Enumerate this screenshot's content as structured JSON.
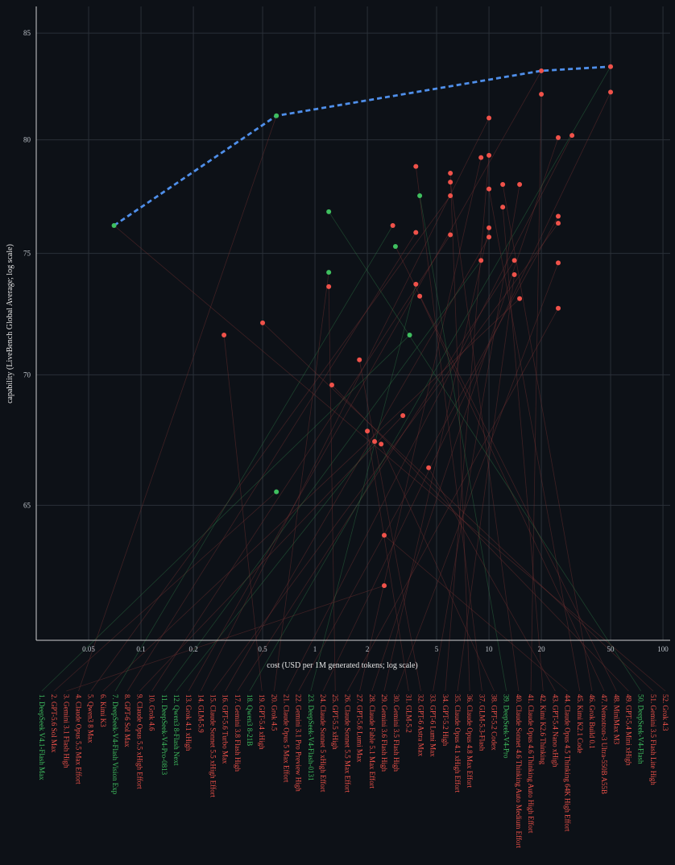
{
  "chart_data": {
    "type": "scatter",
    "xlabel": "cost (USD per 1M generated tokens; log scale)",
    "ylabel": "capability (LiveBench Global Average; log scale)",
    "x_scale": "log",
    "y_scale": "log",
    "xlim": [
      0.025,
      110
    ],
    "ylim": [
      60.2,
      86.3
    ],
    "x_ticks": [
      0.05,
      0.1,
      0.2,
      0.5,
      1,
      2,
      5,
      10,
      20,
      50,
      100
    ],
    "x_tick_labels": [
      "0.05",
      "0.1",
      "0.2",
      "0.5",
      "1",
      "2",
      "5",
      "10",
      "20",
      "50",
      "100"
    ],
    "y_ticks": [
      65,
      70,
      75,
      80,
      85
    ],
    "y_tick_labels": [
      "65",
      "70",
      "75",
      "80",
      "85"
    ],
    "grid": true,
    "colors": {
      "open": "#3fbf5f",
      "closed": "#f0524a",
      "frontier": "#4f8fea",
      "background": "#0d1117",
      "grid": "#2a3038",
      "axis": "#d0d0d0"
    },
    "frontier": [
      {
        "x": 0.07,
        "y": 76.2
      },
      {
        "x": 0.6,
        "y": 81.1
      },
      {
        "x": 20,
        "y": 83.2
      },
      {
        "x": 50,
        "y": 83.4
      }
    ],
    "points": [
      {
        "x": 0.07,
        "y": 76.2,
        "open": true
      },
      {
        "x": 0.3,
        "y": 71.6,
        "open": false
      },
      {
        "x": 0.5,
        "y": 72.1,
        "open": false
      },
      {
        "x": 0.6,
        "y": 81.1,
        "open": true
      },
      {
        "x": 0.6,
        "y": 65.5,
        "open": true
      },
      {
        "x": 1.2,
        "y": 76.8,
        "open": true
      },
      {
        "x": 1.2,
        "y": 74.2,
        "open": true
      },
      {
        "x": 1.2,
        "y": 73.6,
        "open": false
      },
      {
        "x": 1.25,
        "y": 69.6,
        "open": false
      },
      {
        "x": 1.8,
        "y": 70.6,
        "open": false
      },
      {
        "x": 2.0,
        "y": 67.8,
        "open": false
      },
      {
        "x": 2.2,
        "y": 67.4,
        "open": false
      },
      {
        "x": 2.4,
        "y": 67.3,
        "open": false
      },
      {
        "x": 2.5,
        "y": 63.9,
        "open": false
      },
      {
        "x": 2.5,
        "y": 62.1,
        "open": false
      },
      {
        "x": 2.8,
        "y": 76.2,
        "open": false
      },
      {
        "x": 2.9,
        "y": 75.3,
        "open": true
      },
      {
        "x": 3.2,
        "y": 68.4,
        "open": false
      },
      {
        "x": 3.5,
        "y": 71.6,
        "open": true
      },
      {
        "x": 3.8,
        "y": 78.8,
        "open": false
      },
      {
        "x": 3.8,
        "y": 75.9,
        "open": false
      },
      {
        "x": 3.8,
        "y": 73.7,
        "open": false
      },
      {
        "x": 4.0,
        "y": 77.5,
        "open": true
      },
      {
        "x": 4.0,
        "y": 73.2,
        "open": false
      },
      {
        "x": 4.5,
        "y": 66.4,
        "open": false
      },
      {
        "x": 6.0,
        "y": 78.5,
        "open": false
      },
      {
        "x": 6.0,
        "y": 78.1,
        "open": false
      },
      {
        "x": 6.0,
        "y": 77.5,
        "open": false
      },
      {
        "x": 6.0,
        "y": 75.8,
        "open": false
      },
      {
        "x": 9.0,
        "y": 79.2,
        "open": false
      },
      {
        "x": 9.0,
        "y": 74.7,
        "open": false
      },
      {
        "x": 10.0,
        "y": 81.0,
        "open": false
      },
      {
        "x": 10.0,
        "y": 79.3,
        "open": false
      },
      {
        "x": 10.0,
        "y": 77.8,
        "open": false
      },
      {
        "x": 10.0,
        "y": 76.1,
        "open": false
      },
      {
        "x": 10.0,
        "y": 75.7,
        "open": false
      },
      {
        "x": 12.0,
        "y": 78.0,
        "open": false
      },
      {
        "x": 12.0,
        "y": 77.0,
        "open": false
      },
      {
        "x": 14.0,
        "y": 74.7,
        "open": false
      },
      {
        "x": 14.0,
        "y": 74.1,
        "open": false
      },
      {
        "x": 15.0,
        "y": 78.0,
        "open": false
      },
      {
        "x": 15.0,
        "y": 73.1,
        "open": false
      },
      {
        "x": 20.0,
        "y": 83.2,
        "open": false
      },
      {
        "x": 20.0,
        "y": 82.1,
        "open": false
      },
      {
        "x": 25.0,
        "y": 80.1,
        "open": false
      },
      {
        "x": 25.0,
        "y": 76.6,
        "open": false
      },
      {
        "x": 25.0,
        "y": 76.3,
        "open": false
      },
      {
        "x": 25.0,
        "y": 74.6,
        "open": false
      },
      {
        "x": 25.0,
        "y": 72.7,
        "open": false
      },
      {
        "x": 30.0,
        "y": 80.2,
        "open": false
      },
      {
        "x": 50.0,
        "y": 83.4,
        "open": false
      },
      {
        "x": 50.0,
        "y": 82.2,
        "open": false
      }
    ],
    "labels": [
      {
        "text": "1. DeepSeek V4.1-Flash Max",
        "open": true
      },
      {
        "text": "2. GPT-5.6 Sol Max",
        "open": false
      },
      {
        "text": "3. Gemini 3.1 Flash High",
        "open": false
      },
      {
        "text": "4. Claude Opus 5.5 Max Effort",
        "open": false
      },
      {
        "text": "5. Qwen3 8 Max",
        "open": false
      },
      {
        "text": "6. Kimi K3",
        "open": false
      },
      {
        "text": "7. DeepSeek-V4-Flash Vision Exp",
        "open": true
      },
      {
        "text": "8. GPT-6 Sol Max",
        "open": false
      },
      {
        "text": "9. Claude Opus 5.5 xHigh Effort",
        "open": false
      },
      {
        "text": "10. Grok 4.6",
        "open": false
      },
      {
        "text": "11. DeepSeek-V4-Pro-0813",
        "open": true
      },
      {
        "text": "12. Qwen3 8-Flash Next",
        "open": true
      },
      {
        "text": "13. Grok 4.1 xHigh",
        "open": false
      },
      {
        "text": "14. GLM-5.9",
        "open": false
      },
      {
        "text": "15. Claude Sonnet 5.5 xHigh Effort",
        "open": false
      },
      {
        "text": "16. GPT-5.6 Turbo Max",
        "open": false
      },
      {
        "text": "17. Gemini 3.8 Flash High",
        "open": false
      },
      {
        "text": "18. Qwen3 8-21B",
        "open": true
      },
      {
        "text": "19. GPT-5.4 xHigh",
        "open": false
      },
      {
        "text": "20. Grok 4.5",
        "open": false
      },
      {
        "text": "21. Claude Opus 5 Max Effort",
        "open": false
      },
      {
        "text": "22. Gemini 3.1 Pro Preview High",
        "open": false
      },
      {
        "text": "23. DeepSeek-V4-Flash-0131",
        "open": true
      },
      {
        "text": "24. Claude Sonnet 5 xHigh Effort",
        "open": false
      },
      {
        "text": "25. GPT-5.5 xHigh",
        "open": false
      },
      {
        "text": "26. Claude Sonnet 5.5 Max Effort",
        "open": false
      },
      {
        "text": "27. GPT-5.6 Lumi Max",
        "open": false
      },
      {
        "text": "28. Claude Fable 5.1 Max Effort",
        "open": false
      },
      {
        "text": "29. Gemini 3.6 Flash High",
        "open": false
      },
      {
        "text": "30. Gemini 3.5 Flash High",
        "open": false
      },
      {
        "text": "31. GLM-5.2",
        "open": false
      },
      {
        "text": "32. GPT-6 Astra Max",
        "open": false
      },
      {
        "text": "33. GPT-6 Lumi Max",
        "open": false
      },
      {
        "text": "34. GPT-5.2 High",
        "open": false
      },
      {
        "text": "35. Claude Opus 4.1 xHigh Effort",
        "open": false
      },
      {
        "text": "36. Claude Opus 4.8 Max Effort",
        "open": false
      },
      {
        "text": "37. GLM-5.3-Flash",
        "open": false
      },
      {
        "text": "38. GPT-5.2 Codex",
        "open": false
      },
      {
        "text": "39. DeepSeek-V4-Pro",
        "open": true
      },
      {
        "text": "40. Claude Sonnet 4.6 Thinking Auto Medium Effort",
        "open": false
      },
      {
        "text": "41. Claude Opus 4.6 Thinking Auto High Effort",
        "open": false
      },
      {
        "text": "42. Kimi K2.6 Thinking",
        "open": false
      },
      {
        "text": "43. GPT-5.4 Nano xHigh",
        "open": false
      },
      {
        "text": "44. Claude Opus 4.5 Thinking 64K High Effort",
        "open": false
      },
      {
        "text": "45. Kimi K2.1 Code",
        "open": false
      },
      {
        "text": "46. Grok Build 0.1",
        "open": false
      },
      {
        "text": "47. Nemotron-3 Ultra-550B A55B",
        "open": false
      },
      {
        "text": "48. MiniMax M3",
        "open": false
      },
      {
        "text": "49. GPT-5.4 Mini xHigh",
        "open": false
      },
      {
        "text": "50. DeepSeek-V4-Flash",
        "open": true
      },
      {
        "text": "51. Gemini 3.5 Flash Lite High",
        "open": false
      },
      {
        "text": "52. Grok 4.3",
        "open": false
      }
    ],
    "connections": [
      [
        0,
        18
      ],
      [
        1,
        4
      ],
      [
        2,
        14
      ],
      [
        3,
        3
      ],
      [
        4,
        27
      ],
      [
        5,
        41
      ],
      [
        6,
        15
      ],
      [
        7,
        20
      ],
      [
        8,
        17
      ],
      [
        9,
        28
      ],
      [
        10,
        30
      ],
      [
        11,
        11
      ],
      [
        12,
        42
      ],
      [
        13,
        31
      ],
      [
        14,
        46
      ],
      [
        15,
        35
      ],
      [
        16,
        38
      ],
      [
        17,
        50
      ],
      [
        18,
        1
      ],
      [
        19,
        6
      ],
      [
        20,
        49
      ],
      [
        21,
        45
      ],
      [
        22,
        21
      ],
      [
        23,
        51
      ],
      [
        24,
        7
      ],
      [
        25,
        48
      ],
      [
        26,
        29
      ],
      [
        27,
        44
      ],
      [
        28,
        34
      ],
      [
        29,
        47
      ],
      [
        30,
        10
      ],
      [
        31,
        9
      ],
      [
        32,
        40
      ],
      [
        33,
        32
      ],
      [
        34,
        39
      ],
      [
        35,
        25
      ],
      [
        36,
        19
      ],
      [
        37,
        12
      ],
      [
        38,
        22
      ],
      [
        39,
        26
      ],
      [
        40,
        43
      ],
      [
        41,
        37
      ],
      [
        42,
        24
      ],
      [
        43,
        13
      ],
      [
        44,
        33
      ],
      [
        45,
        36
      ],
      [
        46,
        23
      ],
      [
        47,
        16
      ],
      [
        48,
        8
      ],
      [
        49,
        5
      ],
      [
        50,
        2
      ],
      [
        51,
        0
      ]
    ]
  }
}
